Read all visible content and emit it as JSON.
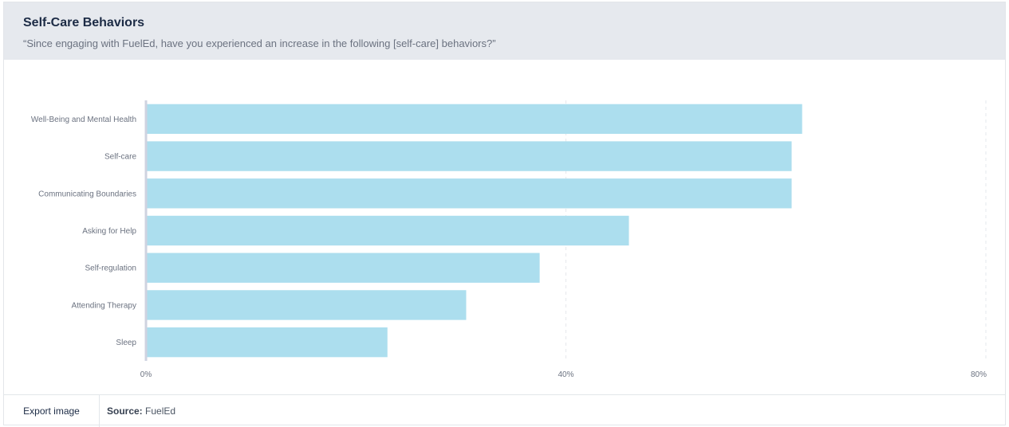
{
  "header": {
    "title": "Self-Care Behaviors",
    "subtitle": "“Since engaging with FuelEd, have you experienced an increase in the following [self-care] behaviors?”"
  },
  "footer": {
    "export_label": "Export image",
    "source_label": "Source:",
    "source_value": "FuelEd"
  },
  "colors": {
    "bar": "#acdeee",
    "axis": "#cfd3e0",
    "grid": "#e6e8ec"
  },
  "chart_data": {
    "type": "bar",
    "orientation": "horizontal",
    "categories": [
      "Well-Being and Mental Health",
      "Self-care",
      "Communicating Boundaries",
      "Asking for Help",
      "Self-regulation",
      "Attending Therapy",
      "Sleep"
    ],
    "values": [
      62.5,
      61.5,
      61.5,
      46,
      37.5,
      30.5,
      23
    ],
    "xlim": [
      0,
      80
    ],
    "ticks": [
      "0%",
      "40%",
      "80%"
    ],
    "tick_values": [
      0,
      40,
      80
    ],
    "grid": true
  }
}
